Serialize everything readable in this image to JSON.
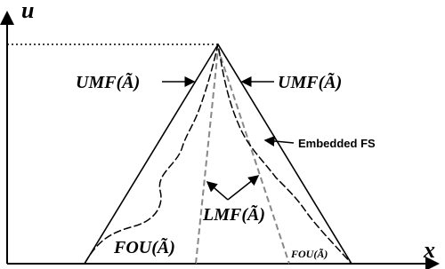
{
  "axes": {
    "y_label": "u",
    "x_label": "x"
  },
  "labels": {
    "umf_left": "UMF(Ã)",
    "umf_right": "UMF(Ã)",
    "embedded": "Embedded  FS",
    "lmf": "LMF(Ã)",
    "fou_left": "FOU(Ã)",
    "fou_right": "FOU(Ã)"
  }
}
